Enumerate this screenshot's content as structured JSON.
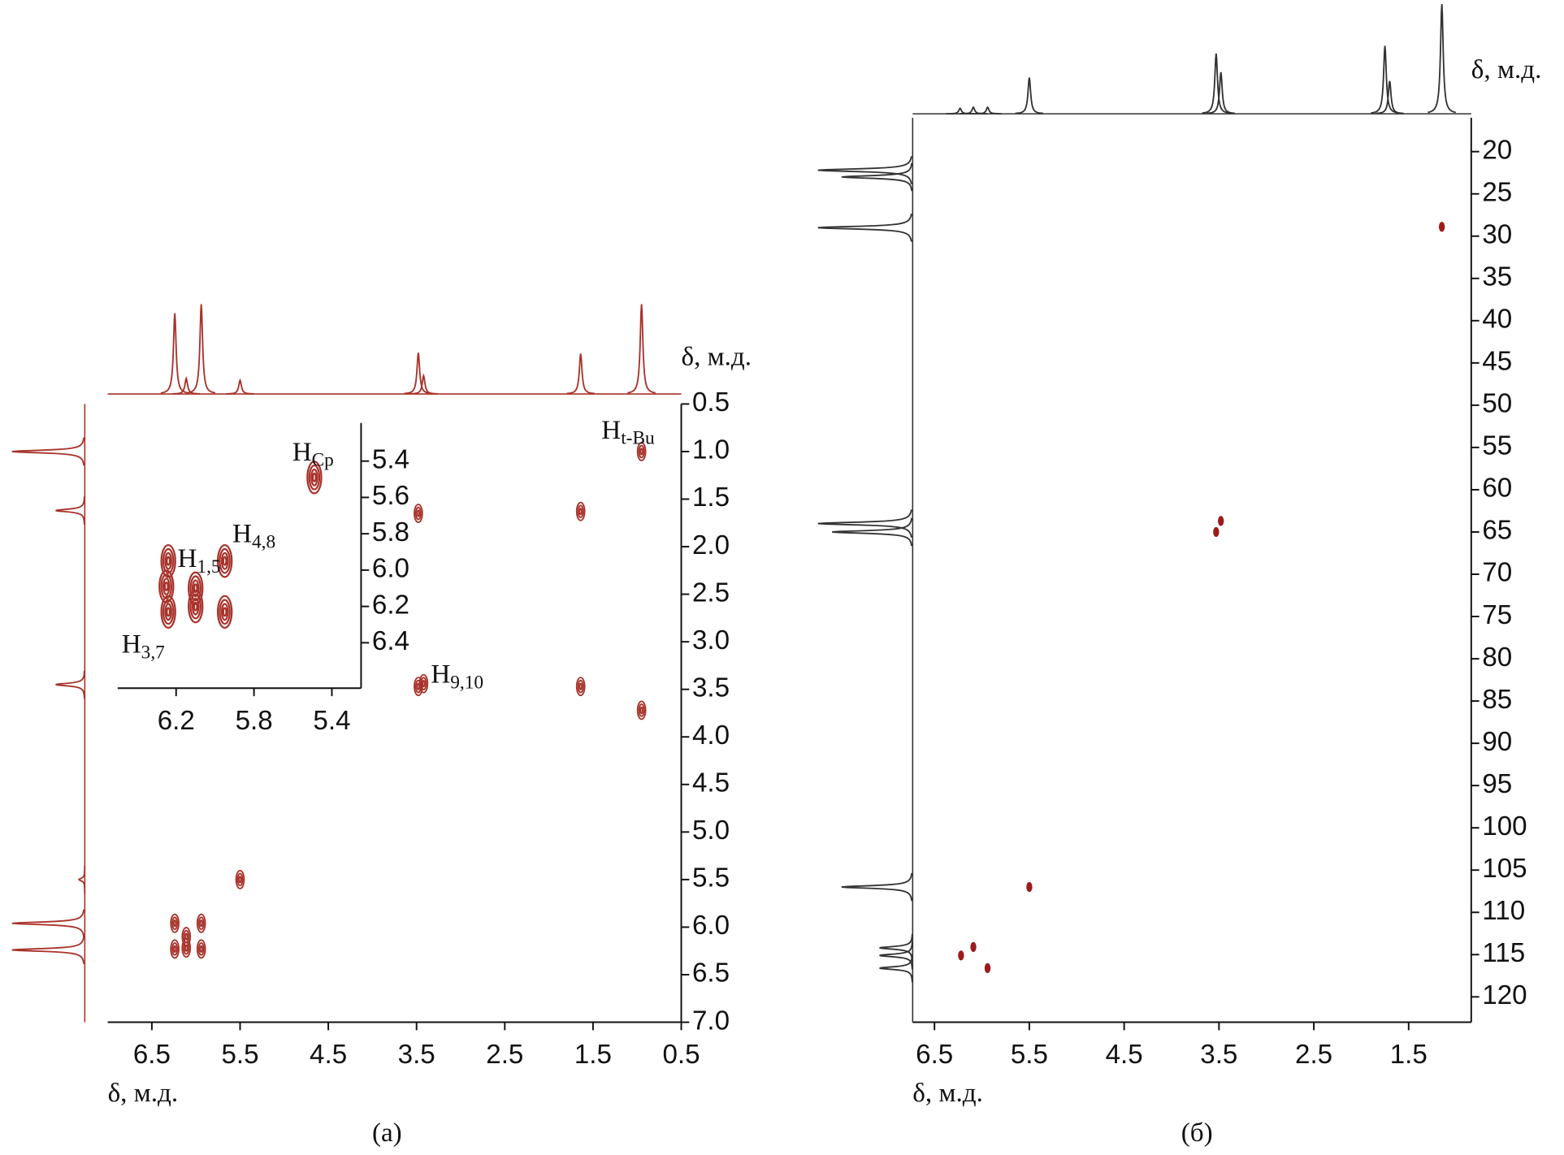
{
  "chart_data": [
    {
      "type": "contour",
      "panel_label": "(а)",
      "x_label": "δ, м.д.",
      "y_label": "δ, м.д.",
      "color": "#a8322a",
      "projection_color": "#a8322a",
      "xlim": [
        7.0,
        0.5
      ],
      "xticks": [
        6.5,
        5.5,
        4.5,
        3.5,
        2.5,
        1.5,
        0.5
      ],
      "ylim": [
        0.5,
        7.0
      ],
      "yticks": [
        0.5,
        {
          "value": 1,
          "label": "1.0"
        },
        1.5,
        {
          "value": 2,
          "label": "2.0"
        },
        2.5,
        {
          "value": 3,
          "label": "3.0"
        },
        3.5,
        {
          "value": 4,
          "label": "4.0"
        },
        4.5,
        {
          "value": 5,
          "label": "5.0"
        },
        5.5,
        {
          "value": 6,
          "label": "6.0"
        },
        6.5,
        {
          "value": 7,
          "label": "7.0"
        }
      ],
      "peaks": {
        "x": [
          0.95,
          1.64,
          3.48,
          1.64,
          3.48,
          3.42,
          5.5,
          6.24,
          5.94,
          6.24,
          5.94,
          6.11,
          6.11,
          0.95
        ],
        "y": [
          1.0,
          1.63,
          1.65,
          3.47,
          3.47,
          3.44,
          5.5,
          5.96,
          5.96,
          6.23,
          6.23,
          6.1,
          6.22,
          3.72
        ]
      },
      "annotations": [
        {
          "text": "H",
          "sub": "t-Bu"
        },
        {
          "text": "H",
          "sub": "9,10"
        }
      ],
      "top_projection": {
        "x": [
          6.24,
          6.11,
          5.94,
          5.5,
          3.48,
          3.42,
          1.64,
          0.95
        ],
        "intensity": [
          88,
          17,
          98,
          15,
          45,
          20,
          44,
          98
        ]
      },
      "side_projection": {
        "y": [
          1.0,
          1.62,
          3.45,
          5.5,
          5.96,
          6.24
        ],
        "intensity": [
          100,
          40,
          40,
          8,
          100,
          100
        ]
      },
      "inset": {
        "xlim": [
          6.5,
          5.25
        ],
        "xticks": [
          6.2,
          5.8,
          5.4
        ],
        "ylim": [
          5.19,
          6.65
        ],
        "yticks": [
          5.4,
          5.6,
          5.8,
          {
            "value": 6,
            "label": "6.0"
          },
          6.2,
          6.4
        ],
        "peaks": {
          "x": [
            5.49,
            6.24,
            5.95,
            6.24,
            5.95,
            6.1,
            6.1,
            6.25
          ],
          "y": [
            5.49,
            5.95,
            5.95,
            6.23,
            6.23,
            6.1,
            6.2,
            6.09
          ]
        },
        "annotations": [
          {
            "text": "H",
            "sub": "Cp"
          },
          {
            "text": "H",
            "sub": "1,5"
          },
          {
            "text": "H",
            "sub": "4,8"
          },
          {
            "text": "H",
            "sub": "3,7"
          }
        ]
      }
    },
    {
      "type": "scatter",
      "panel_label": "(б)",
      "x_label": "δ, м.д.",
      "y_label": "δ, м.д.",
      "color": "#9b1b1b",
      "projection_color": "#333333",
      "xlim": [
        6.73,
        0.84
      ],
      "xticks": [
        6.5,
        5.5,
        4.5,
        3.5,
        2.5,
        1.5
      ],
      "ylim": [
        16,
        123
      ],
      "yticks": [
        20,
        25,
        30,
        35,
        40,
        45,
        50,
        55,
        60,
        65,
        70,
        75,
        80,
        85,
        90,
        95,
        100,
        105,
        110,
        115,
        120
      ],
      "peaks": {
        "x": [
          1.15,
          3.48,
          3.53,
          5.5,
          6.22,
          6.09,
          5.94
        ],
        "y": [
          28.9,
          63.7,
          65,
          107,
          115.1,
          114.1,
          116.6
        ]
      },
      "top_projection": {
        "x": [
          6.23,
          6.09,
          5.94,
          5.5,
          3.53,
          3.48,
          1.75,
          1.7,
          1.15
        ],
        "intensity": [
          5,
          6,
          6,
          33,
          55,
          38,
          62,
          30,
          100
        ]
      },
      "side_projection": {
        "y": [
          22.2,
          23,
          29,
          64,
          65,
          107,
          114.2,
          115.1,
          116.6
        ],
        "intensity": [
          100,
          75,
          100,
          100,
          85,
          75,
          35,
          35,
          35
        ]
      }
    }
  ]
}
